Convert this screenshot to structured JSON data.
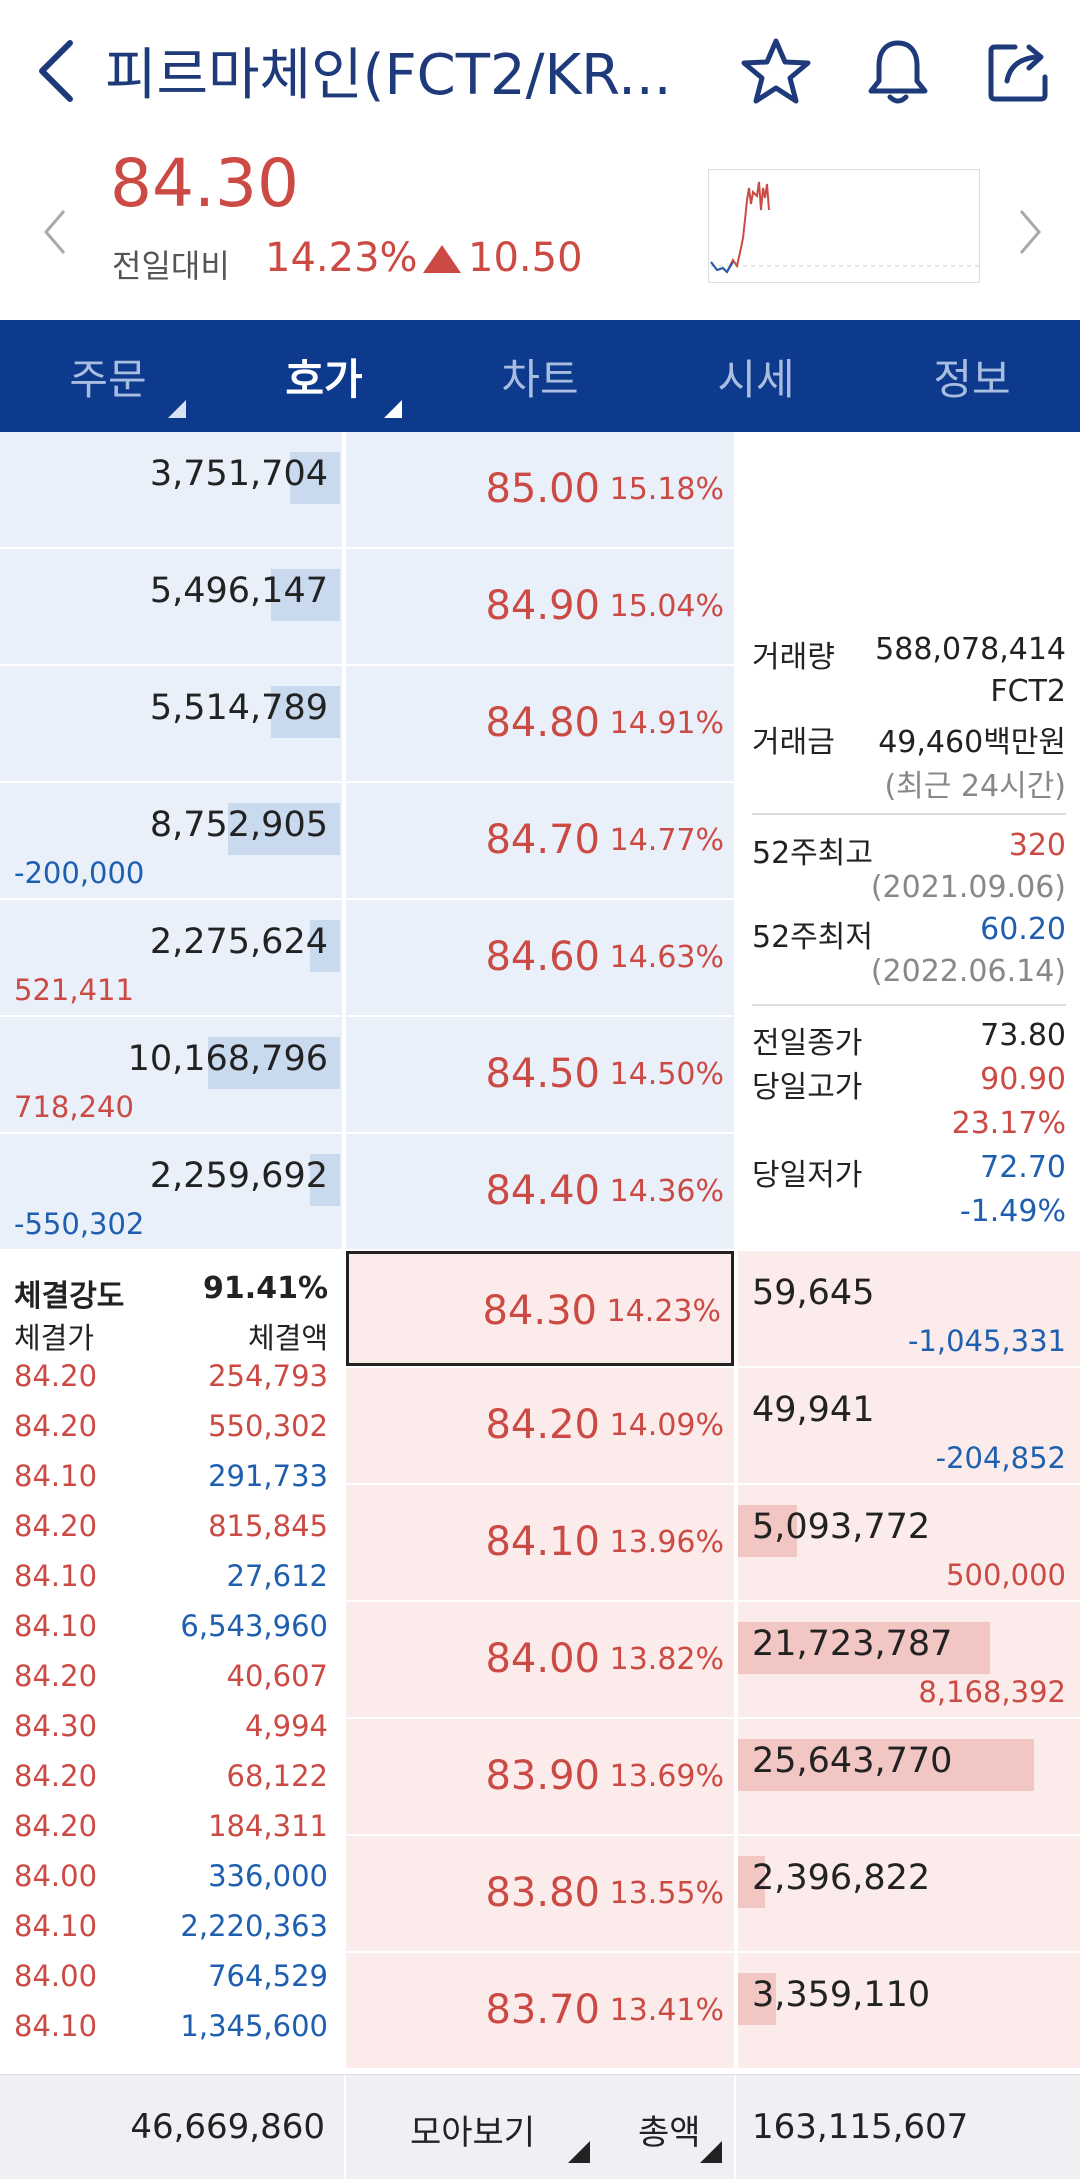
{
  "header": {
    "title": "피르마체인(FCT2/KR...",
    "back_icon": "back-arrow-icon",
    "favorite_icon": "star-icon",
    "alert_icon": "bell-icon",
    "share_icon": "share-icon"
  },
  "summary": {
    "price": "84.30",
    "prev_label": "전일대비",
    "change_pct": "14.23%",
    "change_abs": "10.50",
    "direction": "up",
    "accent_up": "#cc4a44",
    "accent_down": "#1f5fb0"
  },
  "tabs": [
    {
      "label": "주문",
      "active": false
    },
    {
      "label": "호가",
      "active": true
    },
    {
      "label": "차트",
      "active": false
    },
    {
      "label": "시세",
      "active": false
    },
    {
      "label": "정보",
      "active": false
    }
  ],
  "asks": [
    {
      "volume": "3,751,704",
      "bar": 0.15,
      "price": "85.00",
      "pct": "15.18%",
      "change": "",
      "change_color": "blue"
    },
    {
      "volume": "5,496,147",
      "bar": 0.21,
      "price": "84.90",
      "pct": "15.04%",
      "change": "",
      "change_color": "blue"
    },
    {
      "volume": "5,514,789",
      "bar": 0.21,
      "price": "84.80",
      "pct": "14.91%",
      "change": "",
      "change_color": "blue"
    },
    {
      "volume": "8,752,905",
      "bar": 0.34,
      "price": "84.70",
      "pct": "14.77%",
      "change": "-200,000",
      "change_color": "blue"
    },
    {
      "volume": "2,275,624",
      "bar": 0.09,
      "price": "84.60",
      "pct": "14.63%",
      "change": "521,411",
      "change_color": "red"
    },
    {
      "volume": "10,168,796",
      "bar": 0.4,
      "price": "84.50",
      "pct": "14.50%",
      "change": "718,240",
      "change_color": "red"
    },
    {
      "volume": "2,259,692",
      "bar": 0.09,
      "price": "84.40",
      "pct": "14.36%",
      "change": "-550,302",
      "change_color": "blue"
    }
  ],
  "bids": [
    {
      "volume": "59,645",
      "bar": 0.0,
      "price": "84.30",
      "pct": "14.23%",
      "change": "-1,045,331",
      "change_color": "blue",
      "current": true
    },
    {
      "volume": "49,941",
      "bar": 0.0,
      "price": "84.20",
      "pct": "14.09%",
      "change": "-204,852",
      "change_color": "blue"
    },
    {
      "volume": "5,093,772",
      "bar": 0.2,
      "price": "84.10",
      "pct": "13.96%",
      "change": "500,000",
      "change_color": "red"
    },
    {
      "volume": "21,723,787",
      "bar": 0.85,
      "price": "84.00",
      "pct": "13.82%",
      "change": "8,168,392",
      "change_color": "red"
    },
    {
      "volume": "25,643,770",
      "bar": 1.0,
      "price": "83.90",
      "pct": "13.69%",
      "change": "",
      "change_color": "red"
    },
    {
      "volume": "2,396,822",
      "bar": 0.09,
      "price": "83.80",
      "pct": "13.55%",
      "change": "",
      "change_color": "red"
    },
    {
      "volume": "3,359,110",
      "bar": 0.13,
      "price": "83.70",
      "pct": "13.41%",
      "change": "",
      "change_color": "red"
    }
  ],
  "info": {
    "volume_label": "거래량",
    "volume": "588,078,414",
    "volume_unit": "FCT2",
    "amount_label": "거래금",
    "amount": "49,460백만원",
    "period_note": "(최근 24시간)",
    "high52_label": "52주최고",
    "high52": "320",
    "high52_date": "(2021.09.06)",
    "low52_label": "52주최저",
    "low52": "60.20",
    "low52_date": "(2022.06.14)",
    "prev_close_label": "전일종가",
    "prev_close": "73.80",
    "day_high_label": "당일고가",
    "day_high": "90.90",
    "day_high_pct": "23.17%",
    "day_low_label": "당일저가",
    "day_low": "72.70",
    "day_low_pct": "-1.49%"
  },
  "ticks": {
    "strength_label": "체결강도",
    "strength": "91.41%",
    "price_header": "체결가",
    "volume_header": "체결액",
    "rows": [
      {
        "price": "84.20",
        "volume": "254,793",
        "side": "red"
      },
      {
        "price": "84.20",
        "volume": "550,302",
        "side": "red"
      },
      {
        "price": "84.10",
        "volume": "291,733",
        "side": "blue"
      },
      {
        "price": "84.20",
        "volume": "815,845",
        "side": "red"
      },
      {
        "price": "84.10",
        "volume": "27,612",
        "side": "blue"
      },
      {
        "price": "84.10",
        "volume": "6,543,960",
        "side": "blue"
      },
      {
        "price": "84.20",
        "volume": "40,607",
        "side": "red"
      },
      {
        "price": "84.30",
        "volume": "4,994",
        "side": "red"
      },
      {
        "price": "84.20",
        "volume": "68,122",
        "side": "red"
      },
      {
        "price": "84.20",
        "volume": "184,311",
        "side": "red"
      },
      {
        "price": "84.00",
        "volume": "336,000",
        "side": "blue"
      },
      {
        "price": "84.10",
        "volume": "2,220,363",
        "side": "blue"
      },
      {
        "price": "84.00",
        "volume": "764,529",
        "side": "blue"
      },
      {
        "price": "84.10",
        "volume": "1,345,600",
        "side": "blue"
      }
    ]
  },
  "footer": {
    "total_ask": "46,669,860",
    "view_label": "모아보기",
    "sum_label": "총액",
    "total_bid": "163,115,607"
  }
}
